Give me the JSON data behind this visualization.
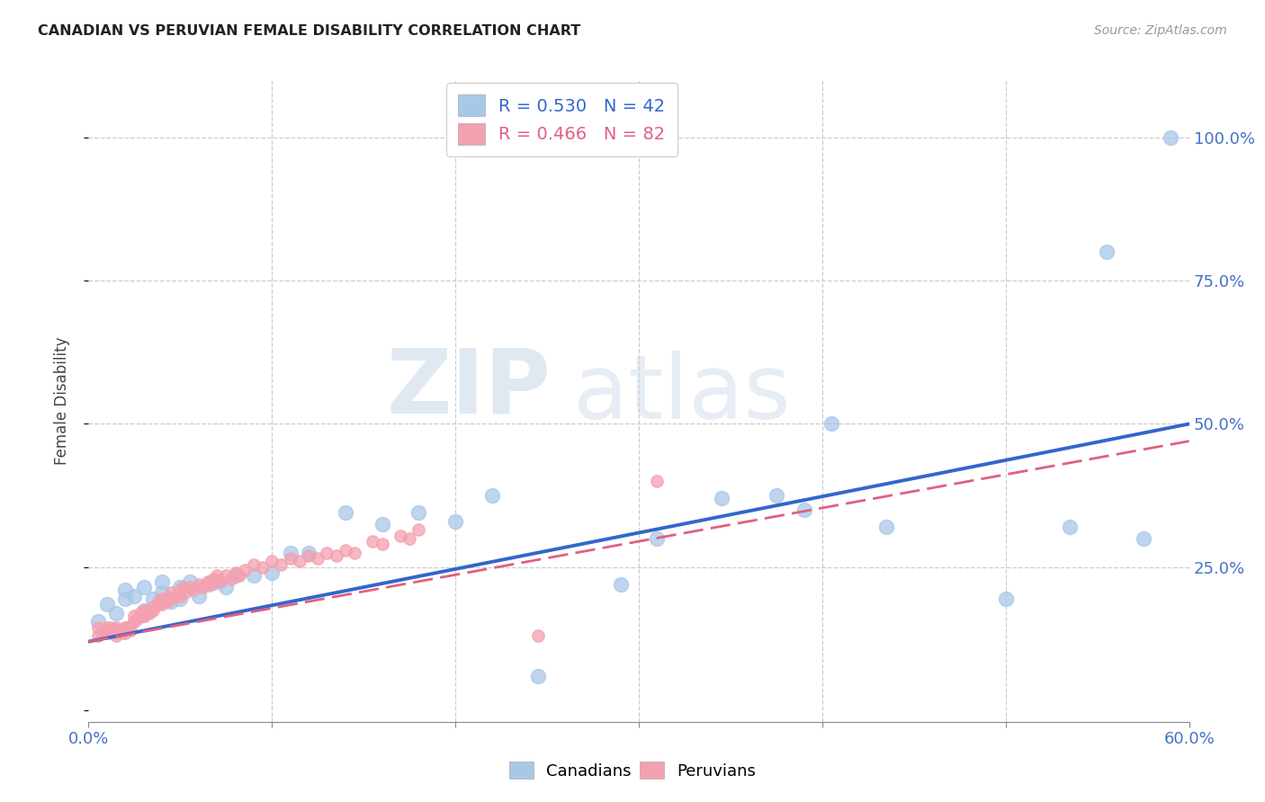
{
  "title": "CANADIAN VS PERUVIAN FEMALE DISABILITY CORRELATION CHART",
  "source": "Source: ZipAtlas.com",
  "ylabel": "Female Disability",
  "canadian_color": "#a8c8e8",
  "peruvian_color": "#f4a0b0",
  "trendline_canadian_color": "#3366cc",
  "trendline_peruvian_color": "#e06080",
  "background_color": "#ffffff",
  "watermark_zip": "ZIP",
  "watermark_atlas": "atlas",
  "xlim": [
    0.0,
    0.6
  ],
  "ylim": [
    -0.02,
    1.1
  ],
  "canadian_x": [
    0.005,
    0.01,
    0.015,
    0.02,
    0.02,
    0.025,
    0.03,
    0.03,
    0.035,
    0.04,
    0.04,
    0.045,
    0.05,
    0.05,
    0.055,
    0.06,
    0.065,
    0.07,
    0.075,
    0.08,
    0.09,
    0.1,
    0.11,
    0.12,
    0.14,
    0.16,
    0.18,
    0.2,
    0.22,
    0.245,
    0.29,
    0.31,
    0.345,
    0.375,
    0.39,
    0.405,
    0.435,
    0.5,
    0.535,
    0.555,
    0.575,
    0.59
  ],
  "canadian_y": [
    0.155,
    0.185,
    0.17,
    0.195,
    0.21,
    0.2,
    0.175,
    0.215,
    0.195,
    0.205,
    0.225,
    0.19,
    0.195,
    0.215,
    0.225,
    0.2,
    0.22,
    0.225,
    0.215,
    0.235,
    0.235,
    0.24,
    0.275,
    0.275,
    0.345,
    0.325,
    0.345,
    0.33,
    0.375,
    0.06,
    0.22,
    0.3,
    0.37,
    0.375,
    0.35,
    0.5,
    0.32,
    0.195,
    0.32,
    0.8,
    0.3,
    1.0
  ],
  "peruvian_x": [
    0.005,
    0.005,
    0.007,
    0.008,
    0.01,
    0.01,
    0.01,
    0.012,
    0.013,
    0.015,
    0.015,
    0.015,
    0.015,
    0.017,
    0.018,
    0.02,
    0.02,
    0.02,
    0.02,
    0.02,
    0.022,
    0.023,
    0.025,
    0.025,
    0.025,
    0.027,
    0.028,
    0.028,
    0.03,
    0.03,
    0.03,
    0.03,
    0.032,
    0.033,
    0.035,
    0.035,
    0.038,
    0.038,
    0.04,
    0.04,
    0.042,
    0.043,
    0.045,
    0.045,
    0.047,
    0.05,
    0.05,
    0.052,
    0.053,
    0.055,
    0.057,
    0.06,
    0.062,
    0.065,
    0.067,
    0.068,
    0.07,
    0.072,
    0.075,
    0.078,
    0.08,
    0.082,
    0.085,
    0.09,
    0.095,
    0.1,
    0.105,
    0.11,
    0.115,
    0.12,
    0.125,
    0.13,
    0.135,
    0.14,
    0.145,
    0.155,
    0.16,
    0.17,
    0.175,
    0.18,
    0.31,
    0.245
  ],
  "peruvian_y": [
    0.13,
    0.145,
    0.135,
    0.14,
    0.135,
    0.145,
    0.14,
    0.145,
    0.135,
    0.14,
    0.13,
    0.145,
    0.135,
    0.14,
    0.135,
    0.145,
    0.14,
    0.135,
    0.145,
    0.14,
    0.145,
    0.14,
    0.155,
    0.165,
    0.155,
    0.16,
    0.17,
    0.165,
    0.165,
    0.17,
    0.175,
    0.165,
    0.175,
    0.17,
    0.18,
    0.175,
    0.19,
    0.185,
    0.195,
    0.185,
    0.195,
    0.19,
    0.205,
    0.195,
    0.2,
    0.21,
    0.2,
    0.215,
    0.205,
    0.215,
    0.21,
    0.22,
    0.215,
    0.225,
    0.22,
    0.23,
    0.235,
    0.225,
    0.235,
    0.23,
    0.24,
    0.235,
    0.245,
    0.255,
    0.25,
    0.26,
    0.255,
    0.265,
    0.26,
    0.27,
    0.265,
    0.275,
    0.27,
    0.28,
    0.275,
    0.295,
    0.29,
    0.305,
    0.3,
    0.315,
    0.4,
    0.13
  ],
  "canadian_trend_x": [
    0.0,
    0.6
  ],
  "canadian_trend_y": [
    0.12,
    0.5
  ],
  "peruvian_trend_x": [
    0.0,
    0.6
  ],
  "peruvian_trend_y": [
    0.12,
    0.47
  ]
}
